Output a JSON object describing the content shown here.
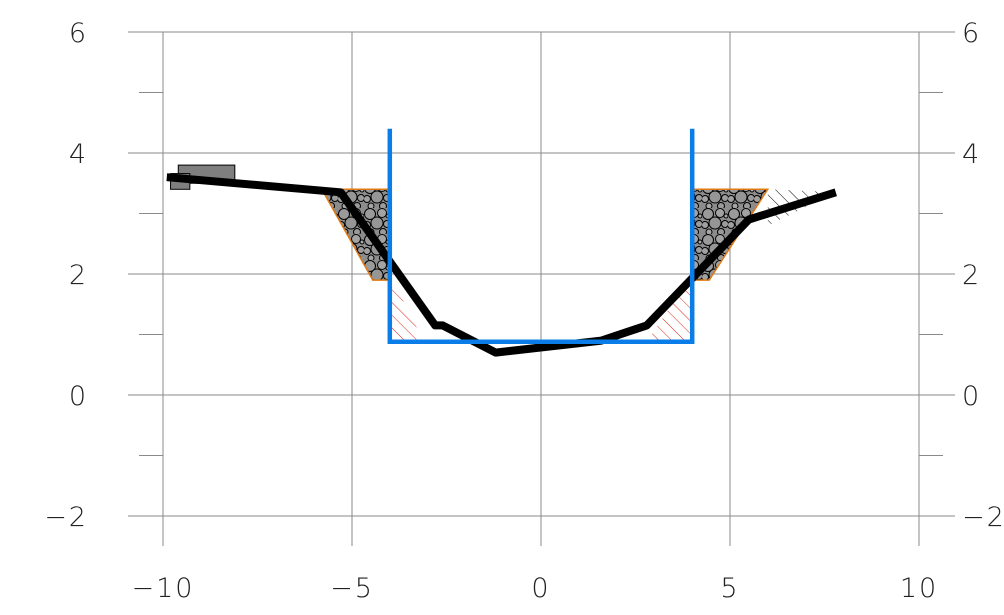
{
  "chart_data": {
    "type": "line",
    "title": "",
    "xlabel": "",
    "ylabel": "",
    "xlim": [
      -10,
      10
    ],
    "ylim": [
      -2,
      6
    ],
    "grid": true,
    "x_ticks": [
      -10,
      -5,
      0,
      5,
      10
    ],
    "y_ticks": [
      -2,
      0,
      2,
      4,
      6
    ],
    "x_tick_labels": [
      "−10",
      "−5",
      "0",
      "5",
      "10"
    ],
    "y_tick_labels": [
      "−2",
      "0",
      "2",
      "4",
      "6"
    ],
    "series": [
      {
        "role": "ground-profile",
        "color": "#000000",
        "x": [
          -9.9,
          -5.3,
          -2.8,
          -2.6,
          -1.2,
          1.6,
          2.8,
          5.5,
          7.8
        ],
        "y": [
          3.6,
          3.35,
          1.15,
          1.15,
          0.7,
          0.9,
          1.15,
          2.9,
          3.35
        ]
      },
      {
        "role": "design-channel",
        "color": "#0a7de8",
        "x": [
          -4.0,
          -4.0,
          4.0,
          4.0
        ],
        "y": [
          4.4,
          0.88,
          0.88,
          4.4
        ]
      }
    ],
    "revetments": [
      {
        "side": "left",
        "x": [
          -5.8,
          -4.0,
          -4.0,
          -4.45
        ],
        "y": [
          3.4,
          3.4,
          1.9,
          1.9
        ],
        "stroke": "#e07a12",
        "fill": "#8c8c8c"
      },
      {
        "side": "right",
        "x": [
          4.0,
          6.0,
          4.45,
          4.0
        ],
        "y": [
          3.4,
          3.4,
          1.9,
          1.9
        ],
        "stroke": "#e07a12",
        "fill": "#8c8c8c"
      }
    ],
    "hatched_areas": [
      {
        "side": "left",
        "color": "#e0281e",
        "x": [
          -4.0,
          -4.0,
          -3.1
        ],
        "y": [
          2.0,
          0.88,
          0.88
        ]
      },
      {
        "side": "right",
        "color": "#e0281e",
        "x": [
          4.0,
          4.0,
          2.8
        ],
        "y": [
          2.0,
          0.88,
          0.88
        ]
      },
      {
        "side": "right-top",
        "color": "#000000",
        "x": [
          6.0,
          7.8,
          6.0
        ],
        "y": [
          3.4,
          3.35,
          2.8
        ]
      }
    ],
    "structure": {
      "color": "#7f7f7f",
      "x": [
        -8.1,
        -9.8
      ],
      "y": [
        3.8,
        3.4
      ]
    }
  }
}
